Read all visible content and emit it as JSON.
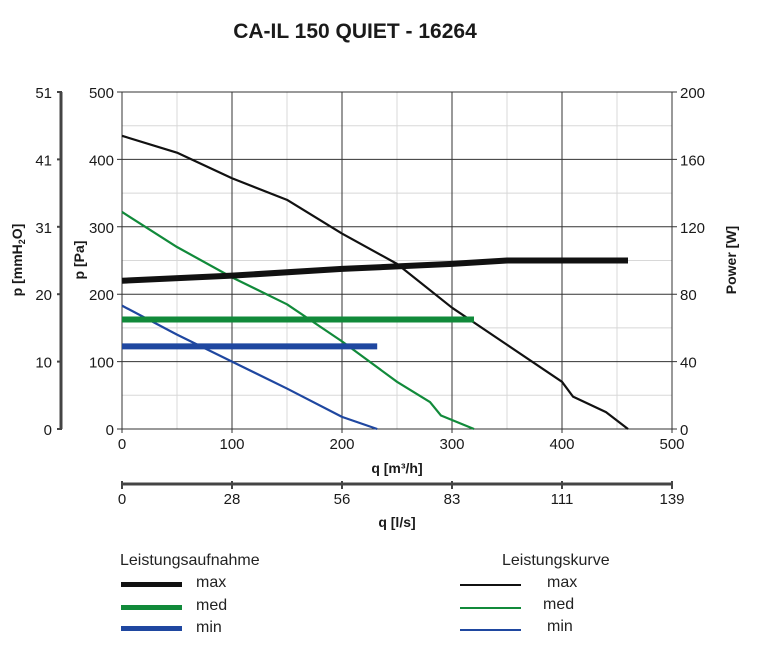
{
  "title": "CA-IL 150 QUIET - 16264",
  "chart_data": {
    "type": "line",
    "title": "CA-IL 150 QUIET - 16264",
    "xlabel": "q [m³/h]",
    "xlabel2": "q [l/s]",
    "ylabel": "p [Pa]",
    "ylabel2": "p [mmH2O]",
    "ylabel_right": "Power [W]",
    "xlim": [
      0,
      500
    ],
    "ylim": [
      0,
      500
    ],
    "ylim_right": [
      0,
      200
    ],
    "x_ticks": [
      0,
      100,
      200,
      300,
      400,
      500
    ],
    "x2_ticks": [
      "0",
      "28",
      "56",
      "83",
      "111",
      "139"
    ],
    "y_ticks": [
      0,
      100,
      200,
      300,
      400,
      500
    ],
    "y_mm_ticks": [
      "0",
      "10",
      "20",
      "31",
      "41",
      "51"
    ],
    "y_right_ticks": [
      0,
      40,
      80,
      120,
      160,
      200
    ],
    "grid": true,
    "series": [
      {
        "name": "Leistungskurve max",
        "axis": "pressure",
        "color": "#111111",
        "points": [
          [
            0,
            435
          ],
          [
            50,
            410
          ],
          [
            100,
            372
          ],
          [
            150,
            340
          ],
          [
            200,
            290
          ],
          [
            250,
            245
          ],
          [
            300,
            180
          ],
          [
            350,
            125
          ],
          [
            400,
            70
          ],
          [
            410,
            48
          ],
          [
            440,
            25
          ],
          [
            460,
            0
          ]
        ]
      },
      {
        "name": "Leistungskurve med",
        "axis": "pressure",
        "color": "#118a3a",
        "points": [
          [
            0,
            322
          ],
          [
            50,
            270
          ],
          [
            100,
            225
          ],
          [
            150,
            185
          ],
          [
            200,
            130
          ],
          [
            250,
            70
          ],
          [
            280,
            40
          ],
          [
            290,
            20
          ],
          [
            320,
            0
          ]
        ]
      },
      {
        "name": "Leistungskurve min",
        "axis": "pressure",
        "color": "#1f47a0",
        "points": [
          [
            0,
            183
          ],
          [
            50,
            140
          ],
          [
            100,
            100
          ],
          [
            150,
            60
          ],
          [
            200,
            18
          ],
          [
            232,
            0
          ]
        ]
      },
      {
        "name": "Leistungsaufnahme max",
        "axis": "power",
        "color": "#111111",
        "points": [
          [
            0,
            88
          ],
          [
            100,
            91
          ],
          [
            200,
            95
          ],
          [
            300,
            98
          ],
          [
            350,
            100
          ],
          [
            460,
            100
          ]
        ]
      },
      {
        "name": "Leistungsaufnahme med",
        "axis": "power",
        "color": "#118a3a",
        "points": [
          [
            0,
            65
          ],
          [
            320,
            65
          ]
        ]
      },
      {
        "name": "Leistungsaufnahme min",
        "axis": "power",
        "color": "#1f47a0",
        "points": [
          [
            0,
            49
          ],
          [
            232,
            49
          ]
        ]
      }
    ]
  },
  "legend": {
    "left_title": "Leistungsaufnahme",
    "right_title": "Leistungskurve",
    "items": [
      {
        "label": "max",
        "color": "#111111"
      },
      {
        "label": "med",
        "color": "#118a3a"
      },
      {
        "label": "min",
        "color": "#1f47a0"
      }
    ]
  }
}
